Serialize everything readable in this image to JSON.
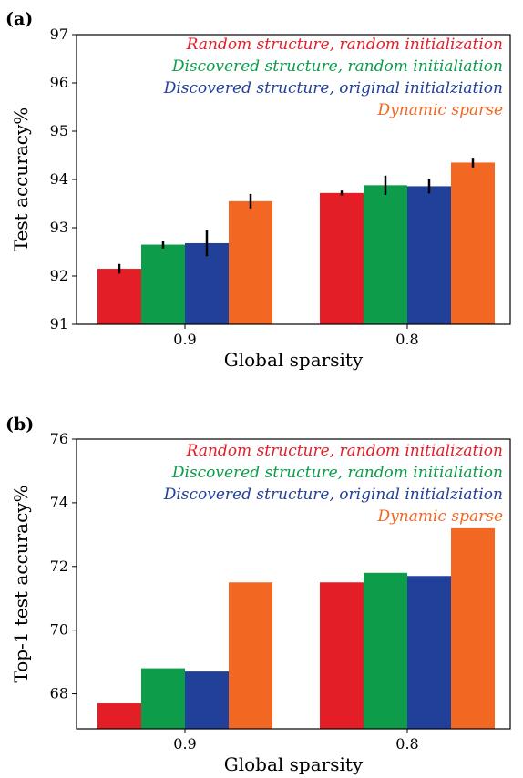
{
  "colors": {
    "random_random": "#e41e26",
    "discovered_random": "#0c9c4a",
    "discovered_original": "#21409a",
    "dynamic_sparse": "#f26722",
    "error_bar": "#000000",
    "axis": "#000000"
  },
  "chart_data": [
    {
      "panel": "(a)",
      "type": "bar",
      "categories": [
        "0.9",
        "0.8"
      ],
      "xlabel": "Global sparsity",
      "ylabel": "Test accuracy%",
      "ylim": [
        91,
        97
      ],
      "yticks": [
        91,
        92,
        93,
        94,
        95,
        96,
        97
      ],
      "legend_position": "top-right",
      "series": [
        {
          "name": "Random structure, random initialization",
          "color_key": "random_random",
          "values": [
            92.15,
            93.72
          ],
          "errors": [
            0.1,
            0.05
          ]
        },
        {
          "name": "Discovered structure, random initialiation",
          "color_key": "discovered_random",
          "values": [
            92.65,
            93.88
          ],
          "errors": [
            0.08,
            0.2
          ]
        },
        {
          "name": "Discovered structure, original initialziation",
          "color_key": "discovered_original",
          "values": [
            92.68,
            93.86
          ],
          "errors": [
            0.27,
            0.15
          ]
        },
        {
          "name": "Dynamic sparse",
          "color_key": "dynamic_sparse",
          "values": [
            93.55,
            94.35
          ],
          "errors": [
            0.15,
            0.1
          ]
        }
      ]
    },
    {
      "panel": "(b)",
      "type": "bar",
      "categories": [
        "0.9",
        "0.8"
      ],
      "xlabel": "Global sparsity",
      "ylabel": "Top-1 test accuracy%",
      "ylim": [
        66.9,
        76
      ],
      "yticks": [
        68,
        70,
        72,
        74,
        76
      ],
      "legend_position": "top-right",
      "series": [
        {
          "name": "Random structure, random initialization",
          "color_key": "random_random",
          "values": [
            67.7,
            71.5
          ]
        },
        {
          "name": "Discovered structure, random initialiation",
          "color_key": "discovered_random",
          "values": [
            68.8,
            71.8
          ]
        },
        {
          "name": "Discovered structure, original initialziation",
          "color_key": "discovered_original",
          "values": [
            68.7,
            71.7
          ]
        },
        {
          "name": "Dynamic sparse",
          "color_key": "dynamic_sparse",
          "values": [
            71.5,
            73.2
          ]
        }
      ]
    }
  ]
}
